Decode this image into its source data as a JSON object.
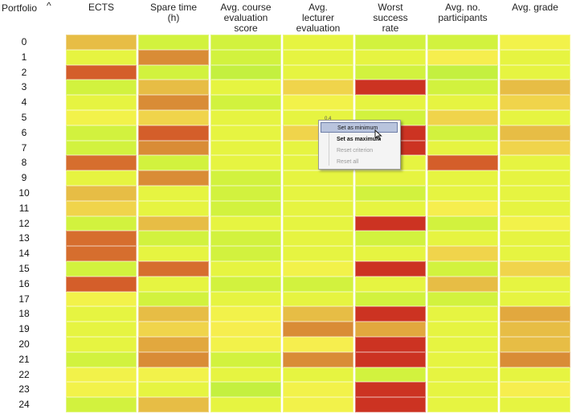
{
  "header": {
    "portfolio_label": "Portfolio",
    "sort_icon": "^",
    "columns": [
      "ECTS",
      "Spare time\n(h)",
      "Avg. course\nevaluation\nscore",
      "Avg.\nlecturer\nevaluation",
      "Worst\nsuccess\nrate",
      "Avg. no.\nparticipants",
      "Avg. grade"
    ]
  },
  "rows": [
    "0",
    "1",
    "2",
    "3",
    "4",
    "5",
    "6",
    "7",
    "8",
    "9",
    "10",
    "11",
    "12",
    "13",
    "14",
    "15",
    "16",
    "17",
    "18",
    "19",
    "20",
    "21",
    "22",
    "23",
    "24"
  ],
  "palette": {
    "G1": "#c4f03f",
    "G2": "#d2f23e",
    "Y1": "#e6f441",
    "Y2": "#f2f24a",
    "Y3": "#f6ee4e",
    "O1": "#f0d44b",
    "O2": "#e7bd45",
    "O3": "#e2a83e",
    "R1": "#d98c36",
    "R2": "#d66e2e",
    "R3": "#d45e2a",
    "X1": "#cc3322"
  },
  "heatmap": [
    [
      "O2",
      "G2",
      "G2",
      "Y1",
      "G2",
      "G2",
      "Y2"
    ],
    [
      "Y1",
      "R1",
      "G2",
      "Y1",
      "Y1",
      "Y3",
      "Y1"
    ],
    [
      "R3",
      "G2",
      "G1",
      "Y1",
      "G2",
      "G1",
      "Y1"
    ],
    [
      "G2",
      "O2",
      "Y1",
      "O1",
      "X1",
      "G2",
      "O2"
    ],
    [
      "Y1",
      "R1",
      "G2",
      "Y2",
      "Y1",
      "Y1",
      "O1"
    ],
    [
      "Y2",
      "O1",
      "Y1",
      "Y1",
      "G2",
      "O1",
      "Y1"
    ],
    [
      "G2",
      "R3",
      "Y1",
      "O1",
      "X1",
      "G2",
      "O2"
    ],
    [
      "G2",
      "R1",
      "Y1",
      "Y1",
      "X1",
      "Y1",
      "O1"
    ],
    [
      "R2",
      "G2",
      "Y1",
      "Y1",
      "Y1",
      "R3",
      "Y1"
    ],
    [
      "Y1",
      "R1",
      "G2",
      "Y1",
      "Y1",
      "Y1",
      "Y1"
    ],
    [
      "O2",
      "Y1",
      "G2",
      "Y1",
      "G2",
      "Y1",
      "Y1"
    ],
    [
      "O1",
      "Y1",
      "G2",
      "Y1",
      "Y1",
      "Y3",
      "Y1"
    ],
    [
      "G2",
      "O2",
      "Y1",
      "Y1",
      "X1",
      "G2",
      "Y2"
    ],
    [
      "R2",
      "G2",
      "G2",
      "Y1",
      "G2",
      "Y1",
      "Y1"
    ],
    [
      "R2",
      "Y1",
      "G2",
      "Y1",
      "Y1",
      "O1",
      "Y1"
    ],
    [
      "G2",
      "R2",
      "Y1",
      "Y2",
      "X1",
      "G2",
      "O1"
    ],
    [
      "R3",
      "Y1",
      "G2",
      "G2",
      "Y1",
      "O2",
      "Y1"
    ],
    [
      "Y2",
      "G2",
      "Y1",
      "Y1",
      "G2",
      "G2",
      "Y1"
    ],
    [
      "Y1",
      "O2",
      "Y2",
      "O2",
      "X1",
      "Y1",
      "O3"
    ],
    [
      "Y1",
      "O1",
      "Y3",
      "R1",
      "O3",
      "Y1",
      "O2"
    ],
    [
      "Y1",
      "O3",
      "Y2",
      "Y3",
      "X1",
      "Y1",
      "O2"
    ],
    [
      "G2",
      "R1",
      "G2",
      "R1",
      "X1",
      "Y1",
      "R1"
    ],
    [
      "Y2",
      "Y2",
      "Y1",
      "Y1",
      "G2",
      "Y1",
      "Y1"
    ],
    [
      "Y2",
      "Y1",
      "G1",
      "Y2",
      "X1",
      "Y1",
      "Y3"
    ],
    [
      "G2",
      "O2",
      "Y1",
      "Y2",
      "X1",
      "Y1",
      "Y1"
    ]
  ],
  "context_menu": {
    "items": [
      {
        "label": "Set as minimum",
        "state": "highlighted"
      },
      {
        "label": "Set as maximum",
        "state": "enabled"
      },
      {
        "label": "Reset criterion",
        "state": "disabled"
      },
      {
        "label": "Reset all",
        "state": "disabled"
      }
    ],
    "tooltip_value": "0.4"
  },
  "icons": {
    "cursor": "arrow-cursor-icon",
    "sort": "sort-ascending-icon"
  }
}
